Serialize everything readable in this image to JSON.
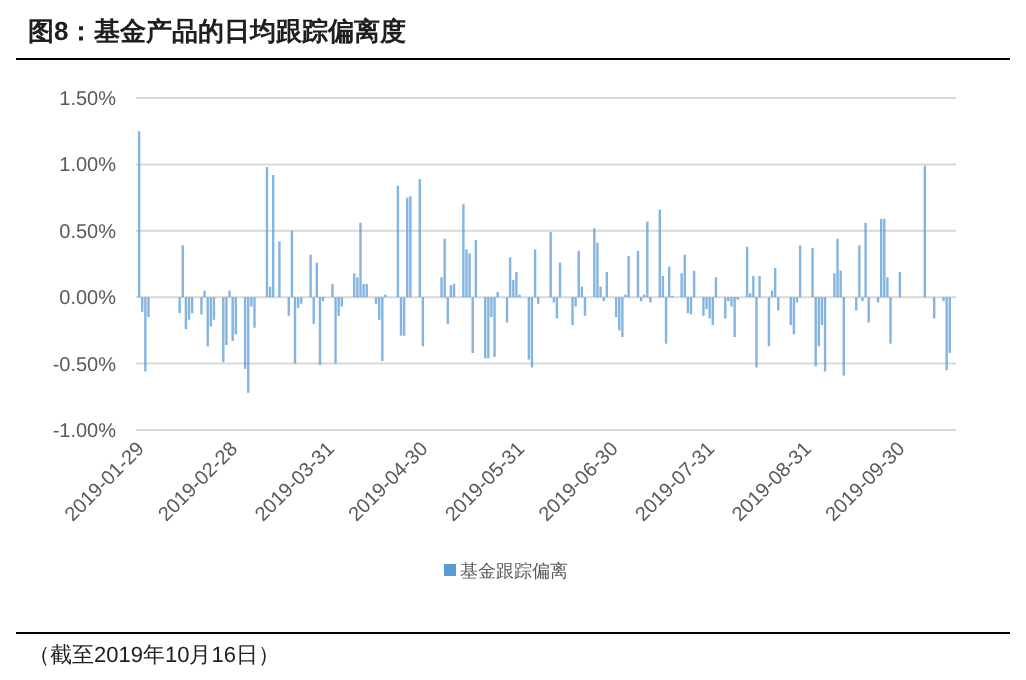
{
  "chart_data": {
    "type": "bar",
    "title": "图8：基金产品的日均跟踪偏离度",
    "x": [
      "2019-01-29",
      "2019-01-30",
      "2019-01-31",
      "2019-02-01",
      "2019-02-11",
      "2019-02-12",
      "2019-02-13",
      "2019-02-14",
      "2019-02-15",
      "2019-02-18",
      "2019-02-19",
      "2019-02-20",
      "2019-02-21",
      "2019-02-22",
      "2019-02-25",
      "2019-02-26",
      "2019-02-27",
      "2019-02-28",
      "2019-03-01",
      "2019-03-04",
      "2019-03-05",
      "2019-03-06",
      "2019-03-07",
      "2019-03-11",
      "2019-03-12",
      "2019-03-13",
      "2019-03-15",
      "2019-03-18",
      "2019-03-19",
      "2019-03-20",
      "2019-03-21",
      "2019-03-22",
      "2019-03-25",
      "2019-03-26",
      "2019-03-27",
      "2019-03-28",
      "2019-03-29",
      "2019-04-01",
      "2019-04-02",
      "2019-04-03",
      "2019-04-04",
      "2019-04-08",
      "2019-04-09",
      "2019-04-10",
      "2019-04-11",
      "2019-04-12",
      "2019-04-15",
      "2019-04-16",
      "2019-04-17",
      "2019-04-18",
      "2019-04-22",
      "2019-04-23",
      "2019-04-24",
      "2019-04-25",
      "2019-04-26",
      "2019-04-29",
      "2019-04-30",
      "2019-05-06",
      "2019-05-07",
      "2019-05-08",
      "2019-05-09",
      "2019-05-10",
      "2019-05-13",
      "2019-05-14",
      "2019-05-15",
      "2019-05-16",
      "2019-05-17",
      "2019-05-20",
      "2019-05-21",
      "2019-05-22",
      "2019-05-23",
      "2019-05-24",
      "2019-05-27",
      "2019-05-28",
      "2019-05-29",
      "2019-05-30",
      "2019-05-31",
      "2019-06-03",
      "2019-06-04",
      "2019-06-05",
      "2019-06-06",
      "2019-06-10",
      "2019-06-11",
      "2019-06-12",
      "2019-06-13",
      "2019-06-17",
      "2019-06-18",
      "2019-06-19",
      "2019-06-20",
      "2019-06-21",
      "2019-06-24",
      "2019-06-25",
      "2019-06-26",
      "2019-06-27",
      "2019-06-28",
      "2019-07-01",
      "2019-07-02",
      "2019-07-03",
      "2019-07-04",
      "2019-07-05",
      "2019-07-08",
      "2019-07-09",
      "2019-07-10",
      "2019-07-11",
      "2019-07-12",
      "2019-07-15",
      "2019-07-16",
      "2019-07-17",
      "2019-07-18",
      "2019-07-19",
      "2019-07-22",
      "2019-07-23",
      "2019-07-24",
      "2019-07-25",
      "2019-07-26",
      "2019-07-29",
      "2019-07-30",
      "2019-07-31",
      "2019-08-01",
      "2019-08-02",
      "2019-08-05",
      "2019-08-06",
      "2019-08-07",
      "2019-08-08",
      "2019-08-09",
      "2019-08-12",
      "2019-08-13",
      "2019-08-14",
      "2019-08-15",
      "2019-08-16",
      "2019-08-19",
      "2019-08-20",
      "2019-08-21",
      "2019-08-22",
      "2019-08-26",
      "2019-08-27",
      "2019-08-28",
      "2019-08-29",
      "2019-09-02",
      "2019-09-03",
      "2019-09-04",
      "2019-09-05",
      "2019-09-06",
      "2019-09-09",
      "2019-09-10",
      "2019-09-11",
      "2019-09-12",
      "2019-09-16",
      "2019-09-17",
      "2019-09-18",
      "2019-09-19",
      "2019-09-20",
      "2019-09-23",
      "2019-09-24",
      "2019-09-25",
      "2019-09-26",
      "2019-09-27",
      "2019-09-30",
      "2019-10-08",
      "2019-10-11",
      "2019-10-14",
      "2019-10-15",
      "2019-10-16"
    ],
    "series": [
      {
        "name": "基金跟踪偏离",
        "color": "#5b9bd5",
        "values": [
          1.25,
          -0.11,
          -0.56,
          -0.15,
          -0.12,
          0.39,
          -0.24,
          -0.17,
          -0.12,
          -0.13,
          0.05,
          -0.37,
          -0.22,
          -0.17,
          -0.49,
          -0.36,
          0.05,
          -0.33,
          -0.28,
          -0.54,
          -0.72,
          -0.07,
          -0.23,
          0.98,
          0.08,
          0.92,
          0.42,
          -0.14,
          0.5,
          -0.5,
          -0.08,
          -0.05,
          0.32,
          -0.2,
          0.26,
          -0.51,
          -0.03,
          0.1,
          -0.5,
          -0.14,
          -0.07,
          0.18,
          0.15,
          0.56,
          0.1,
          0.1,
          -0.05,
          -0.17,
          -0.48,
          0.02,
          0.84,
          -0.29,
          -0.29,
          0.75,
          0.76,
          0.89,
          -0.37,
          0.15,
          0.44,
          -0.2,
          0.09,
          0.1,
          0.7,
          0.36,
          0.33,
          -0.42,
          0.43,
          -0.46,
          -0.46,
          -0.15,
          -0.45,
          0.04,
          -0.19,
          0.3,
          0.13,
          0.19,
          0.02,
          -0.47,
          -0.53,
          0.36,
          -0.05,
          0.49,
          -0.04,
          -0.16,
          0.26,
          -0.21,
          -0.07,
          0.35,
          0.08,
          -0.14,
          0.52,
          0.41,
          0.08,
          -0.03,
          0.19,
          -0.15,
          -0.25,
          -0.3,
          0.02,
          0.31,
          0.35,
          -0.03,
          0.02,
          0.57,
          -0.04,
          0.66,
          0.16,
          -0.35,
          0.23,
          0.01,
          0.18,
          0.32,
          -0.12,
          -0.13,
          0.2,
          -0.14,
          -0.09,
          -0.16,
          -0.21,
          0.15,
          -0.16,
          -0.03,
          -0.07,
          -0.3,
          -0.02,
          0.38,
          0.03,
          0.16,
          -0.53,
          0.16,
          -0.37,
          0.05,
          0.22,
          -0.1,
          -0.21,
          -0.28,
          -0.04,
          0.39,
          0.37,
          -0.52,
          -0.37,
          -0.21,
          -0.56,
          0.18,
          0.44,
          0.2,
          -0.59,
          -0.1,
          0.39,
          -0.03,
          0.56,
          -0.19,
          -0.04,
          0.59,
          0.59,
          0.15,
          -0.35,
          0.19,
          0.99,
          -0.16,
          -0.03,
          -0.55,
          -0.42
        ]
      }
    ],
    "xlim": [
      "2019-01-28",
      "2019-10-18"
    ],
    "xticks": [
      "2019-01-29",
      "2019-02-28",
      "2019-03-31",
      "2019-04-30",
      "2019-05-31",
      "2019-06-30",
      "2019-07-31",
      "2019-08-31",
      "2019-09-30"
    ],
    "ylim": [
      -1,
      1.5
    ],
    "yticks": [
      {
        "value": -1,
        "label": "-1.00%"
      },
      {
        "value": -0.5,
        "label": "-0.50%"
      },
      {
        "value": 0,
        "label": "0.00%"
      },
      {
        "value": 0.5,
        "label": "0.50%"
      },
      {
        "value": 1,
        "label": "1.00%"
      },
      {
        "value": 1.5,
        "label": "1.50%"
      }
    ],
    "grid": "y",
    "legend": "bottom",
    "annotations": [
      "（截至2019年10月16日）"
    ]
  }
}
